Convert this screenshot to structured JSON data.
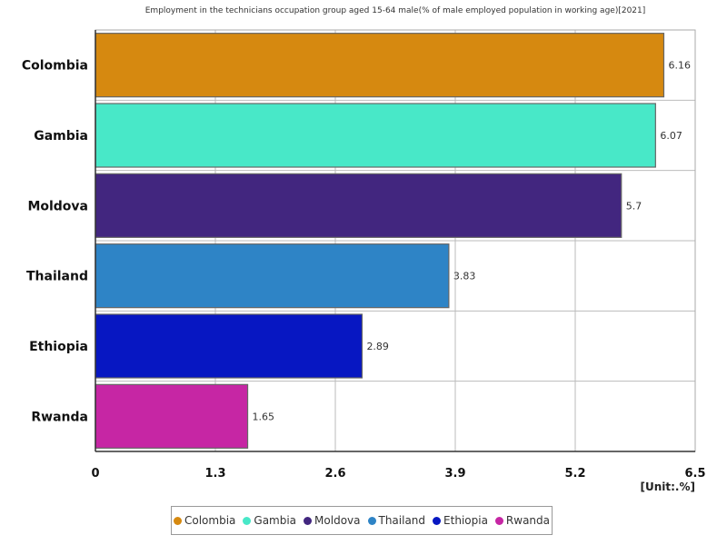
{
  "chart_data": {
    "type": "bar",
    "orientation": "horizontal",
    "title": "Employment in the technicians occupation group aged 15-64 male(% of male employed population in working age)[2021]",
    "unit": "[Unit:.%]",
    "categories": [
      "Colombia",
      "Gambia",
      "Moldova",
      "Thailand",
      "Ethiopia",
      "Rwanda"
    ],
    "values": [
      6.16,
      6.07,
      5.7,
      3.83,
      2.89,
      1.65
    ],
    "value_labels": [
      "6.16",
      "6.07",
      "5.7",
      "3.83",
      "2.89",
      "1.65"
    ],
    "colors": [
      "#d68910",
      "#48e8c8",
      "#42267f",
      "#2e84c6",
      "#0717c2",
      "#c626a4"
    ],
    "xlim": [
      0,
      6.5
    ],
    "xticks": [
      0,
      1.3,
      2.6,
      3.9,
      5.2,
      6.5
    ],
    "xtick_labels": [
      "0",
      "1.3",
      "2.6",
      "3.9",
      "5.2",
      "6.5"
    ],
    "grid": true,
    "legend_position": "bottom"
  }
}
